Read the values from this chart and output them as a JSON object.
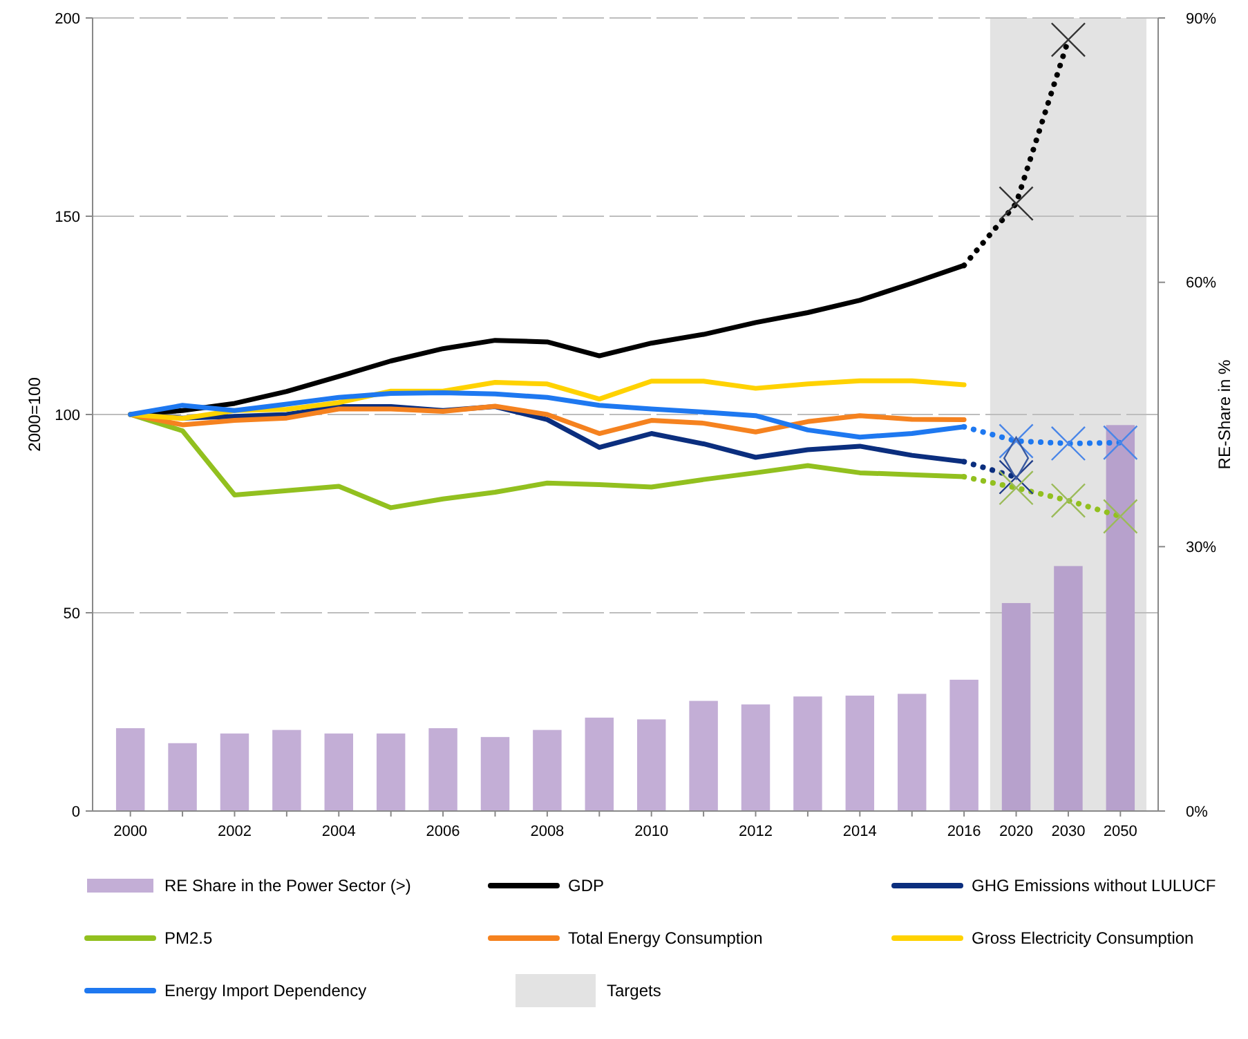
{
  "chart_data": {
    "type": "line",
    "ylabel": "2000=100",
    "y2label": "RE-Share in %",
    "categories": [
      "2000",
      null,
      "2002",
      null,
      "2004",
      null,
      "2006",
      null,
      "2008",
      null,
      "2010",
      null,
      "2012",
      null,
      "2014",
      null,
      "2016",
      "2020",
      "2030",
      "2050"
    ],
    "ylim": [
      0,
      200
    ],
    "yticks": [
      0,
      50,
      100,
      150,
      200
    ],
    "y2lim": [
      0,
      90
    ],
    "y2ticks": [
      {
        "value": 0,
        "label": "0%"
      },
      {
        "value": 30,
        "label": "30%"
      },
      {
        "value": 60,
        "label": "60%"
      },
      {
        "value": 90,
        "label": "90%"
      }
    ],
    "grid": "y",
    "legend": "bottom",
    "bands": [
      {
        "axis": "x",
        "from": "2020",
        "to": "2050",
        "label": "Targets",
        "color": "#e3e3e3"
      }
    ],
    "series": [
      {
        "type": "bar",
        "axis": "y2",
        "name": "RE Share in the Power Sector (>)",
        "color": "#c3aed6",
        "values": [
          9.4,
          7.7,
          8.8,
          9.2,
          8.8,
          8.8,
          9.4,
          8.4,
          9.2,
          10.6,
          10.4,
          12.5,
          12.1,
          13.0,
          13.1,
          13.3,
          14.9,
          23.6,
          27.8,
          43.8
        ],
        "colors": [
          "#c3aed6",
          "#c3aed6",
          "#c3aed6",
          "#c3aed6",
          "#c3aed6",
          "#c3aed6",
          "#c3aed6",
          "#c3aed6",
          "#c3aed6",
          "#c3aed6",
          "#c3aed6",
          "#c3aed6",
          "#c3aed6",
          "#c3aed6",
          "#c3aed6",
          "#c3aed6",
          "#c3aed6",
          "#b7a1cc",
          "#b7a1cc",
          "#b7a1cc"
        ]
      },
      {
        "name": "GDP",
        "color": "#000000",
        "line_style": "solid",
        "values": [
          100,
          101,
          102.8,
          105.8,
          109.6,
          113.5,
          116.6,
          118.7,
          118.3,
          114.8,
          118,
          120.2,
          123.2,
          125.7,
          128.8,
          133.1,
          137.6,
          null,
          null,
          null
        ]
      },
      {
        "name": "GHG Emissions without LULUCF",
        "color": "#0b2e7e",
        "line_style": "solid",
        "values": [
          100,
          99.1,
          99.5,
          100,
          102,
          102,
          101,
          102,
          98.7,
          91.7,
          95.2,
          92.6,
          89.2,
          91.1,
          92,
          89.7,
          88.1,
          null,
          null,
          null
        ]
      },
      {
        "name": "PM2.5",
        "color": "#92c01f",
        "line_style": "solid",
        "values": [
          100,
          95.9,
          79.7,
          80.8,
          81.9,
          76.5,
          78.7,
          80.4,
          82.7,
          82.3,
          81.7,
          83.6,
          85.3,
          87.1,
          85.3,
          84.8,
          84.3,
          null,
          null,
          null
        ]
      },
      {
        "name": "Total Energy Consumption",
        "color": "#f5821f",
        "line_style": "solid",
        "values": [
          100,
          97.4,
          98.5,
          99.1,
          101.4,
          101.4,
          100.8,
          102.1,
          100,
          95.2,
          98.5,
          97.8,
          95.6,
          98.2,
          99.7,
          98.8,
          98.7,
          null,
          null,
          null
        ]
      },
      {
        "name": "Gross Electricity Consumption",
        "color": "#ffd200",
        "line_style": "solid",
        "values": [
          100,
          99,
          101,
          101.3,
          103,
          105.9,
          105.9,
          108.1,
          107.7,
          103.9,
          108.4,
          108.4,
          106.6,
          107.7,
          108.5,
          108.5,
          107.5,
          null,
          null,
          null
        ]
      },
      {
        "name": "Energy Import Dependency",
        "color": "#1e78f0",
        "line_style": "solid",
        "values": [
          100,
          102.3,
          101,
          102.6,
          104.3,
          105.3,
          105.5,
          105.2,
          104.3,
          102.3,
          101.4,
          100.6,
          99.7,
          96.1,
          94.3,
          95.2,
          96.9,
          null,
          null,
          null
        ]
      },
      {
        "type": "line",
        "color": "#000000",
        "line_style": "dotted",
        "values": [
          null,
          null,
          null,
          null,
          null,
          null,
          null,
          null,
          null,
          null,
          null,
          null,
          null,
          null,
          null,
          null,
          137.6,
          153.2,
          194.5,
          null
        ]
      },
      {
        "type": "line",
        "color": "#0b2e7e",
        "line_style": "dotted",
        "values": [
          null,
          null,
          null,
          null,
          null,
          null,
          null,
          null,
          null,
          null,
          null,
          null,
          null,
          null,
          null,
          null,
          88.1,
          84.2,
          null,
          null
        ]
      },
      {
        "type": "line",
        "color": "#92c01f",
        "line_style": "dotted",
        "values": [
          null,
          null,
          null,
          null,
          null,
          null,
          null,
          null,
          null,
          null,
          null,
          null,
          null,
          null,
          null,
          null,
          84.3,
          81.5,
          78.3,
          74.3
        ]
      },
      {
        "type": "line",
        "color": "#1e78f0",
        "line_style": "dotted",
        "values": [
          null,
          null,
          null,
          null,
          null,
          null,
          null,
          null,
          null,
          null,
          null,
          null,
          null,
          null,
          null,
          null,
          96.9,
          93.3,
          92.7,
          92.9
        ]
      },
      {
        "type": "scatter",
        "color": "#333333",
        "marker": "cross",
        "values": [
          null,
          null,
          null,
          null,
          null,
          null,
          null,
          null,
          null,
          null,
          null,
          null,
          null,
          null,
          null,
          null,
          null,
          153.2,
          194.5,
          null
        ]
      },
      {
        "type": "scatter",
        "color": "#1f3c88",
        "marker": "cross",
        "values": [
          null,
          null,
          null,
          null,
          null,
          null,
          null,
          null,
          null,
          null,
          null,
          null,
          null,
          null,
          null,
          null,
          null,
          84.2,
          null,
          null
        ]
      },
      {
        "type": "scatter",
        "color": "#9bbb59",
        "marker": "cross",
        "values": [
          null,
          null,
          null,
          null,
          null,
          null,
          null,
          null,
          null,
          null,
          null,
          null,
          null,
          null,
          null,
          null,
          null,
          81.5,
          78.3,
          74.3
        ]
      },
      {
        "type": "scatter",
        "color": "#4a86e8",
        "marker": "cross",
        "values": [
          null,
          null,
          null,
          null,
          null,
          null,
          null,
          null,
          null,
          null,
          null,
          null,
          null,
          null,
          null,
          null,
          null,
          93.3,
          92.7,
          92.9
        ]
      },
      {
        "type": "scatter",
        "color": "#3a5aa0",
        "marker": "diamond",
        "values": [
          null,
          null,
          null,
          null,
          null,
          null,
          null,
          null,
          null,
          null,
          null,
          null,
          null,
          null,
          null,
          null,
          null,
          89.0,
          null,
          null
        ]
      }
    ]
  }
}
